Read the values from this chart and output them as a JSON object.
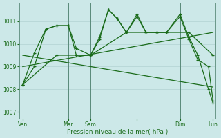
{
  "bg_color": "#cce8e8",
  "grid_color": "#aacccc",
  "line_color": "#1a6b1a",
  "xlabel": "Pression niveau de la mer( hPa )",
  "ylim": [
    1006.7,
    1011.8
  ],
  "yticks": [
    1007,
    1008,
    1009,
    1010,
    1011
  ],
  "xlim": [
    -2,
    218
  ],
  "xtick_pos": [
    2,
    53,
    78,
    130,
    178,
    215
  ],
  "xtick_labels": [
    "Ven",
    "Mar",
    "Sam",
    "",
    "Dim",
    "Lun"
  ],
  "vline_pos": [
    53,
    78,
    130,
    178,
    215
  ],
  "series": [
    {
      "x": [
        2,
        15,
        28,
        40,
        53,
        62,
        78,
        88,
        98,
        108,
        118,
        130,
        140,
        152,
        163,
        178,
        188,
        198,
        210,
        215
      ],
      "y": [
        1008.2,
        1009.0,
        1010.65,
        1010.8,
        1010.8,
        1009.8,
        1009.5,
        1010.2,
        1011.5,
        1011.1,
        1010.5,
        1011.2,
        1010.5,
        1010.5,
        1010.5,
        1011.3,
        1010.3,
        1009.5,
        1008.0,
        1007.4
      ],
      "marker": true,
      "dashed": false,
      "lw": 0.9
    },
    {
      "x": [
        2,
        15,
        28,
        40,
        53,
        62,
        78,
        88,
        98,
        108,
        118,
        130,
        140,
        152,
        163,
        178,
        188,
        198,
        210,
        215
      ],
      "y": [
        1008.2,
        1009.6,
        1010.65,
        1010.8,
        1010.8,
        1009.5,
        1009.5,
        1010.3,
        1011.5,
        1011.1,
        1010.5,
        1011.3,
        1010.5,
        1010.5,
        1010.5,
        1011.2,
        1010.2,
        1009.3,
        1009.0,
        1007.5
      ],
      "marker": true,
      "dashed": false,
      "lw": 0.9
    },
    {
      "x": [
        2,
        40,
        78,
        118,
        152,
        188,
        215
      ],
      "y": [
        1008.2,
        1009.5,
        1009.5,
        1010.5,
        1010.5,
        1010.5,
        1009.5
      ],
      "marker": true,
      "dashed": false,
      "lw": 0.9
    },
    {
      "x": [
        2,
        215
      ],
      "y": [
        1009.5,
        1008.1
      ],
      "marker": false,
      "dashed": false,
      "lw": 0.9
    },
    {
      "x": [
        2,
        215
      ],
      "y": [
        1009.0,
        1010.5
      ],
      "marker": false,
      "dashed": false,
      "lw": 0.9
    }
  ]
}
